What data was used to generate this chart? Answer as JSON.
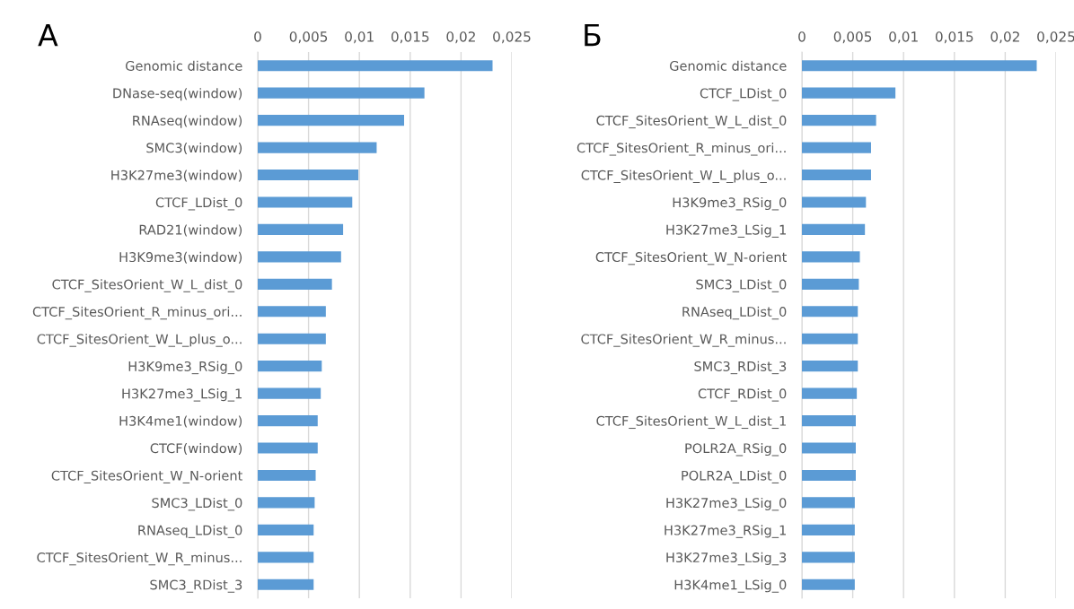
{
  "chart_data": [
    {
      "type": "bar",
      "orientation": "horizontal",
      "title": "А",
      "color": "#5b9bd5",
      "grid": "x",
      "categories": [
        "Genomic distance",
        "DNase-seq(window)",
        "RNAseq(window)",
        "SMC3(window)",
        "H3K27me3(window)",
        "CTCF_LDist_0",
        "RAD21(window)",
        "H3K9me3(window)",
        "CTCF_SitesOrient_W_L_dist_0",
        "CTCF_SitesOrient_R_minus_ori...",
        "CTCF_SitesOrient_W_L_plus_o...",
        "H3K9me3_RSig_0",
        "H3K27me3_LSig_1",
        "H3K4me1(window)",
        "CTCF(window)",
        "CTCF_SitesOrient_W_N-orient",
        "SMC3_LDist_0",
        "RNAseq_LDist_0",
        "CTCF_SitesOrient_W_R_minus...",
        "SMC3_RDist_3"
      ],
      "values": [
        0.0231,
        0.0164,
        0.0144,
        0.0117,
        0.0099,
        0.0093,
        0.0084,
        0.0082,
        0.0073,
        0.0067,
        0.0067,
        0.0063,
        0.0062,
        0.0059,
        0.0059,
        0.0057,
        0.0056,
        0.0055,
        0.0055,
        0.0055
      ],
      "xlim": [
        0,
        0.025
      ],
      "xticks": [
        0,
        {
          "value": 0.005,
          "label": "0,005"
        },
        {
          "value": 0.01,
          "label": "0,01"
        },
        {
          "value": 0.015,
          "label": "0,015"
        },
        {
          "value": 0.02,
          "label": "0,02"
        },
        {
          "value": 0.025,
          "label": "0,025"
        }
      ]
    },
    {
      "type": "bar",
      "orientation": "horizontal",
      "title": "Б",
      "color": "#5b9bd5",
      "grid": "x",
      "categories": [
        "Genomic distance",
        "CTCF_LDist_0",
        "CTCF_SitesOrient_W_L_dist_0",
        "CTCF_SitesOrient_R_minus_ori...",
        "CTCF_SitesOrient_W_L_plus_o...",
        "H3K9me3_RSig_0",
        "H3K27me3_LSig_1",
        "CTCF_SitesOrient_W_N-orient",
        "SMC3_LDist_0",
        "RNAseq_LDist_0",
        "CTCF_SitesOrient_W_R_minus...",
        "SMC3_RDist_3",
        "CTCF_RDist_0",
        "CTCF_SitesOrient_W_L_dist_1",
        "POLR2A_RSig_0",
        "POLR2A_LDist_0",
        "H3K27me3_LSig_0",
        "H3K27me3_RSig_1",
        "H3K27me3_LSig_3",
        "H3K4me1_LSig_0"
      ],
      "values": [
        0.0231,
        0.0092,
        0.0073,
        0.0068,
        0.0068,
        0.0063,
        0.0062,
        0.0057,
        0.0056,
        0.0055,
        0.0055,
        0.0055,
        0.0054,
        0.0053,
        0.0053,
        0.0053,
        0.0052,
        0.0052,
        0.0052,
        0.0052
      ],
      "xlim": [
        0,
        0.025
      ],
      "xticks": [
        0,
        {
          "value": 0.005,
          "label": "0,005"
        },
        {
          "value": 0.01,
          "label": "0,01"
        },
        {
          "value": 0.015,
          "label": "0,015"
        },
        {
          "value": 0.02,
          "label": "0,02"
        },
        {
          "value": 0.025,
          "label": "0,025"
        }
      ]
    }
  ]
}
